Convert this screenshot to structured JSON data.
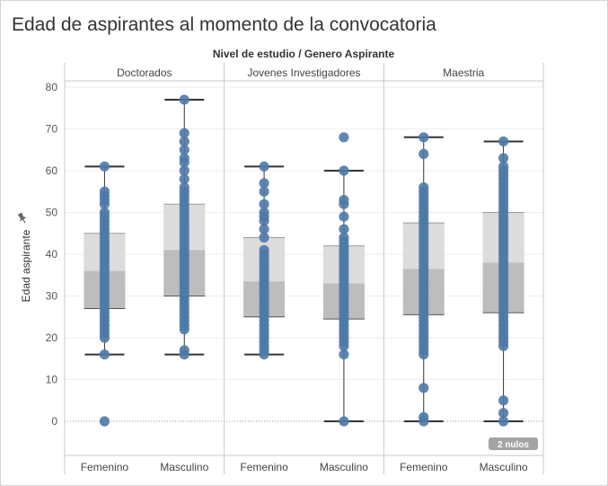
{
  "title": "Edad de aspirantes al momento de la convocatoria",
  "chart_data": {
    "type": "box",
    "header": "Nivel de estudio / Genero Aspirante",
    "ylabel": "Edad aspirante",
    "ylim": [
      -8,
      82
    ],
    "yticks": [
      0,
      10,
      20,
      30,
      40,
      50,
      60,
      70,
      80
    ],
    "grid": true,
    "nulls_badge": "2 nulos",
    "colors": {
      "dot": "#4e79a7",
      "box_upper": "#dcdcdc",
      "box_lower": "#bdbdbd",
      "whisker": "#333333"
    },
    "panels": [
      {
        "name": "Doctorados",
        "boxes": [
          {
            "category": "Femenino",
            "min": 16,
            "q1": 27,
            "median": 36,
            "q3": 45,
            "max": 61,
            "points": [
              0,
              16,
              20,
              21,
              22,
              23,
              24,
              25,
              26,
              27,
              28,
              29,
              30,
              31,
              32,
              33,
              34,
              35,
              36,
              37,
              38,
              39,
              40,
              41,
              42,
              43,
              44,
              45,
              46,
              47,
              48,
              49,
              50,
              52,
              53,
              54,
              55,
              61
            ]
          },
          {
            "category": "Masculino",
            "min": 16,
            "q1": 30,
            "median": 41,
            "q3": 52,
            "max": 77,
            "points": [
              16,
              17,
              22,
              23,
              24,
              25,
              26,
              27,
              28,
              29,
              30,
              31,
              32,
              33,
              34,
              35,
              36,
              37,
              38,
              39,
              40,
              41,
              42,
              43,
              44,
              45,
              46,
              47,
              48,
              49,
              50,
              51,
              52,
              53,
              54,
              55,
              56,
              58,
              60,
              62,
              63,
              65,
              67,
              69,
              77
            ]
          }
        ]
      },
      {
        "name": "Jovenes Investigadores",
        "boxes": [
          {
            "category": "Femenino",
            "min": 16,
            "q1": 25,
            "median": 33.5,
            "q3": 44,
            "max": 61,
            "points": [
              16,
              17,
              18,
              19,
              20,
              21,
              22,
              23,
              24,
              25,
              26,
              27,
              28,
              29,
              30,
              31,
              32,
              33,
              34,
              35,
              36,
              37,
              38,
              39,
              40,
              41,
              44,
              46,
              48,
              49,
              50,
              52,
              55,
              57,
              61
            ]
          },
          {
            "category": "Masculino",
            "min": 0,
            "q1": 24.5,
            "median": 33,
            "q3": 42,
            "max": 60,
            "points": [
              0,
              16,
              18,
              19,
              20,
              21,
              22,
              23,
              24,
              25,
              26,
              27,
              28,
              29,
              30,
              31,
              32,
              33,
              34,
              35,
              36,
              37,
              38,
              39,
              40,
              41,
              42,
              43,
              44,
              46,
              49,
              52,
              53,
              60,
              68
            ]
          }
        ]
      },
      {
        "name": "Maestria",
        "boxes": [
          {
            "category": "Femenino",
            "min": 0,
            "q1": 25.5,
            "median": 36.5,
            "q3": 47.5,
            "max": 68,
            "points": [
              0,
              1,
              8,
              16,
              17,
              18,
              19,
              20,
              21,
              22,
              23,
              24,
              25,
              26,
              27,
              28,
              29,
              30,
              31,
              32,
              33,
              34,
              35,
              36,
              37,
              38,
              39,
              40,
              41,
              42,
              43,
              44,
              45,
              46,
              47,
              48,
              49,
              50,
              51,
              52,
              53,
              54,
              55,
              56,
              64,
              68
            ]
          },
          {
            "category": "Masculino",
            "min": 0,
            "q1": 26,
            "median": 38,
            "q3": 50,
            "max": 67,
            "points": [
              0,
              2,
              5,
              18,
              19,
              20,
              21,
              22,
              23,
              24,
              25,
              26,
              27,
              28,
              29,
              30,
              31,
              32,
              33,
              34,
              35,
              36,
              37,
              38,
              39,
              40,
              41,
              42,
              43,
              44,
              45,
              46,
              47,
              48,
              49,
              50,
              51,
              52,
              53,
              54,
              55,
              56,
              57,
              58,
              59,
              60,
              61,
              63,
              67
            ]
          }
        ]
      }
    ]
  }
}
